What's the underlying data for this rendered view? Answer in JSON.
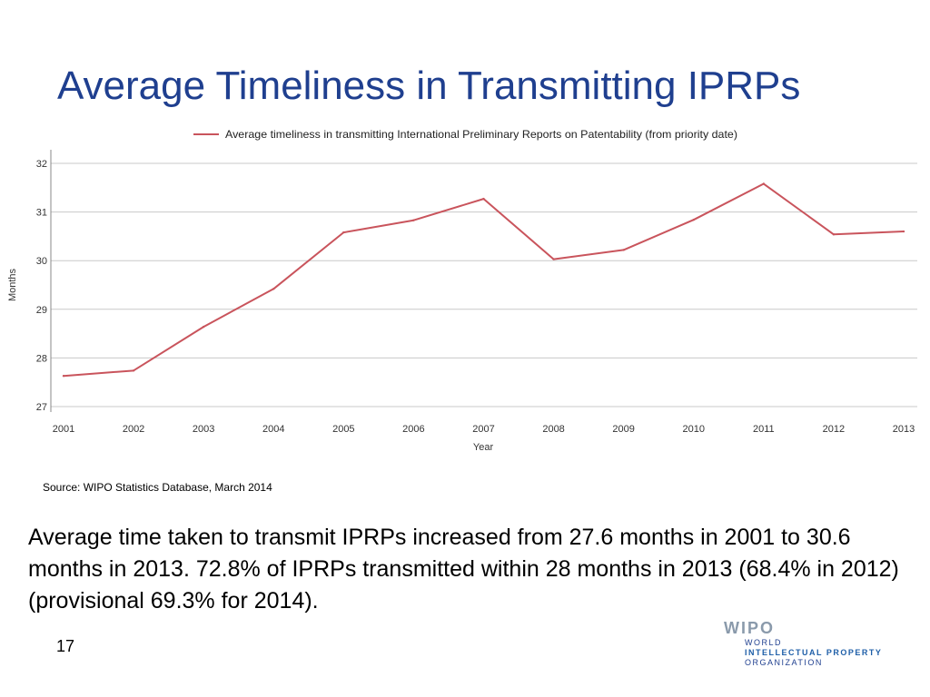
{
  "slide": {
    "title": "Average Timeliness in Transmitting IPRPs",
    "source": "Source:  WIPO Statistics Database, March 2014",
    "body_text": "Average time taken to transmit IPRPs increased from 27.6 months in 2001 to 30.6 months in 2013.  72.8% of IPRPs transmitted within 28 months in 2013 (68.4% in 2012) (provisional 69.3% for 2014).",
    "page_number": "17"
  },
  "logo": {
    "mark": "WIPO",
    "line1": "WORLD",
    "line2": "INTELLECTUAL PROPERTY",
    "line3": "ORGANIZATION",
    "colors": {
      "mark": "#8a9aab",
      "text": "#1f3f8f",
      "accent": "#1f5fa8"
    }
  },
  "colors": {
    "title": "#1f3f8f",
    "series": "#c9545c",
    "grid": "#c8c8c8"
  },
  "chart_data": {
    "type": "line",
    "legend": "Average timeliness in transmitting International Preliminary Reports on Patentability (from priority date)",
    "xlabel": "Year",
    "ylabel": "Months",
    "ylim": [
      27,
      32
    ],
    "yticks": [
      27,
      28,
      29,
      30,
      31,
      32
    ],
    "grid": true,
    "categories": [
      "2001",
      "2002",
      "2003",
      "2004",
      "2005",
      "2006",
      "2007",
      "2008",
      "2009",
      "2010",
      "2011",
      "2012",
      "2013"
    ],
    "series": [
      {
        "name": "Average timeliness in transmitting International Preliminary Reports on Patentability (from priority date)",
        "values": [
          27.63,
          27.74,
          28.64,
          29.42,
          30.58,
          30.83,
          31.27,
          30.03,
          30.22,
          30.84,
          31.58,
          30.54,
          30.6
        ]
      }
    ]
  }
}
